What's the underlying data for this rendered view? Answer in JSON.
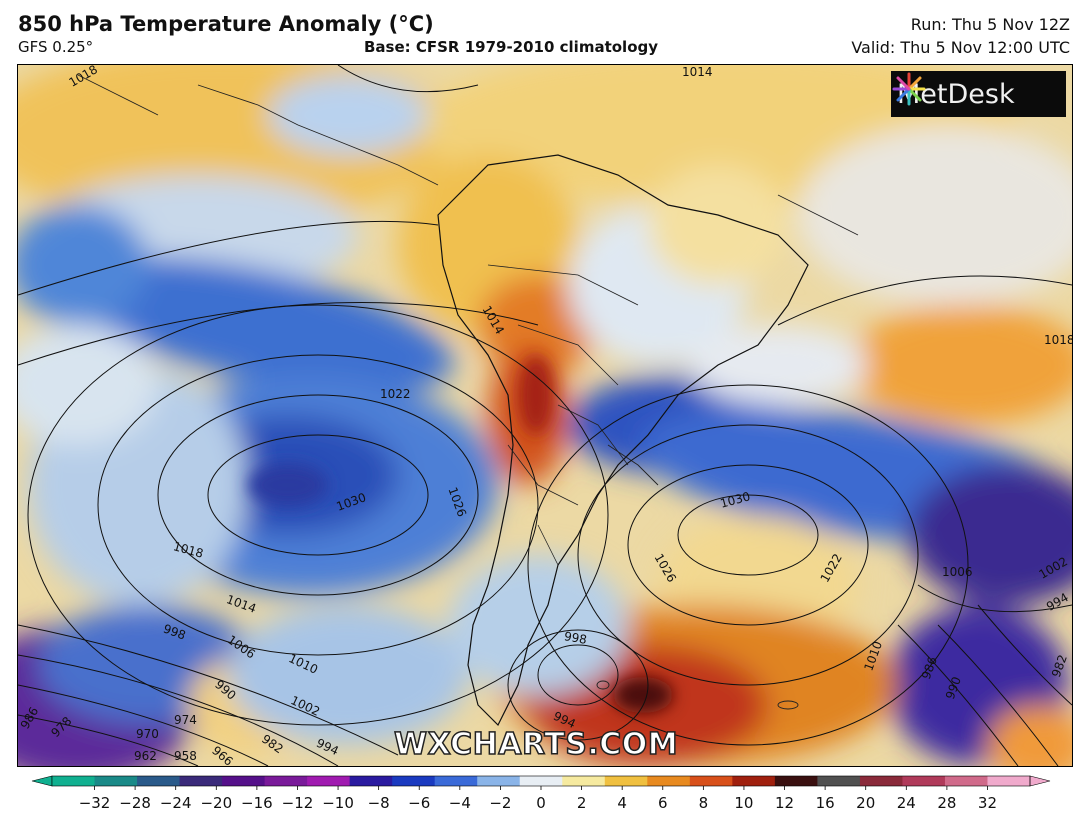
{
  "header": {
    "title": "850 hPa Temperature Anomaly (°C)",
    "model": "GFS 0.25°",
    "base": "Base: CFSR 1979-2010 climatology",
    "run": "Run: Thu 5 Nov 12Z",
    "valid": "Valid: Thu 5 Nov 12:00 UTC"
  },
  "logo": {
    "text": "MetDesk",
    "icon": "starburst-logo-icon"
  },
  "watermark": "WXCHARTS.COM",
  "isobar_labels": [
    "1014",
    "1022",
    "1030",
    "1026",
    "1018",
    "1014",
    "998",
    "1006",
    "1010",
    "990",
    "1002",
    "974",
    "970",
    "962",
    "958",
    "966",
    "982",
    "994",
    "978",
    "986",
    "1030",
    "1026",
    "1022",
    "998",
    "994",
    "1006",
    "1002",
    "994",
    "1010",
    "986",
    "990",
    "982",
    "1018",
    "1014",
    "1018"
  ],
  "colorbar": {
    "unit": "°C",
    "ticks": [
      "−32",
      "−28",
      "−24",
      "−20",
      "−16",
      "−12",
      "−10",
      "−8",
      "−6",
      "−4",
      "−2",
      "0",
      "2",
      "4",
      "6",
      "8",
      "10",
      "12",
      "16",
      "20",
      "24",
      "28",
      "32"
    ],
    "colors": [
      "#10b090",
      "#1a8a88",
      "#2a5a8a",
      "#3a2a7a",
      "#55108a",
      "#7a1a9a",
      "#a01ab0",
      "#2a1aa0",
      "#1a3ac0",
      "#3a6ad8",
      "#8ab4e8",
      "#e8eef4",
      "#f6eaa0",
      "#f0c040",
      "#e88a20",
      "#d8501a",
      "#a0200e",
      "#3a1010",
      "#505050",
      "#8a2a3a",
      "#b03a5a",
      "#d06a8a",
      "#f0aacc"
    ]
  }
}
